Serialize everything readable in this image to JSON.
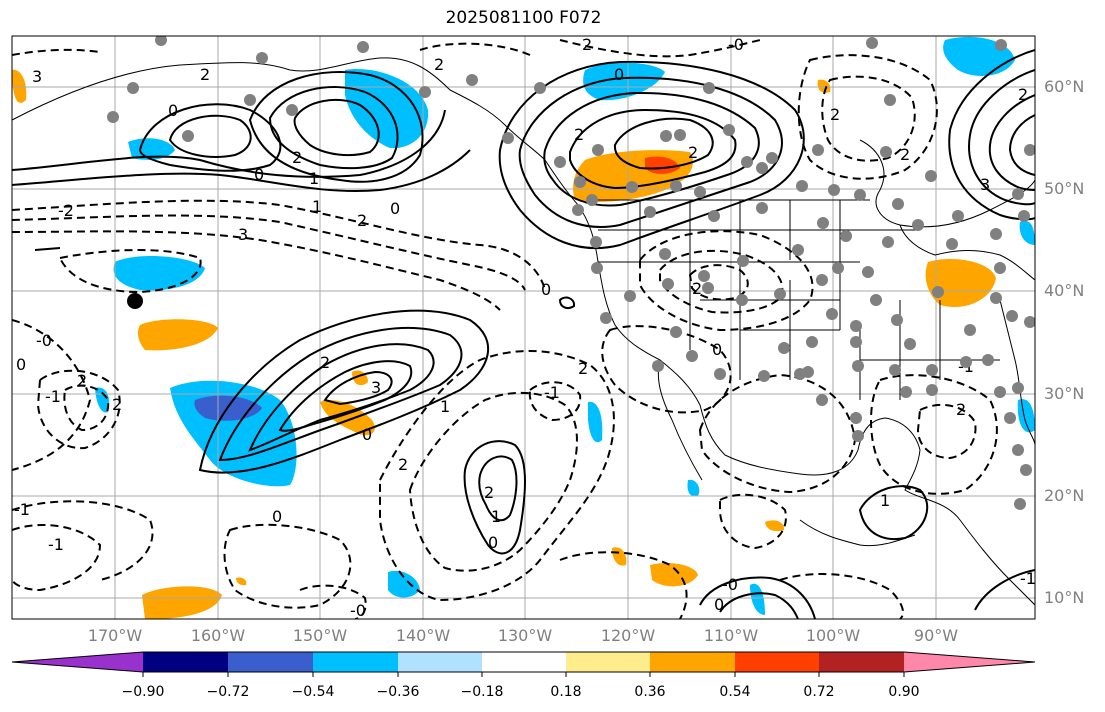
{
  "title": "2025081100 F072",
  "map": {
    "type": "forecast-anomaly-map",
    "region": "North-East Pacific and North America",
    "gridlines": true,
    "lat_labels": [
      "60°N",
      "50°N",
      "40°N",
      "30°N",
      "20°N",
      "10°N"
    ],
    "lon_labels": [
      "170°W",
      "160°W",
      "150°W",
      "140°W",
      "130°W",
      "120°W",
      "110°W",
      "100°W",
      "90°W"
    ],
    "contour_labels": [
      "3",
      "2",
      "0",
      "2",
      "1",
      "0",
      "2",
      "1",
      "2",
      "0",
      "3",
      "2",
      "0",
      "2",
      "2",
      "-0",
      "2",
      "0",
      "-0",
      "2",
      "-1",
      "2",
      "-2",
      "0",
      "0",
      "3",
      "2",
      "1",
      "2",
      "-1",
      "2",
      "0",
      "1",
      "2",
      "-0",
      "-1",
      "-1",
      "0",
      "-0",
      "0",
      "1",
      "2",
      "-1",
      "-1",
      "0",
      "2",
      "2",
      "2",
      "3"
    ],
    "colorbar": {
      "ticks": [
        "−0.90",
        "−0.72",
        "−0.54",
        "−0.36",
        "−0.18",
        "0.18",
        "0.36",
        "0.54",
        "0.72",
        "0.90"
      ],
      "colors": [
        "#9932cc",
        "#000080",
        "#3a5fcd",
        "#00bfff",
        "#b0e2ff",
        "#ffffff",
        "#ffec8b",
        "#ffa500",
        "#ff4000",
        "#b22222",
        "#ff88aa"
      ]
    },
    "marker_color": "#000000",
    "station_color": "#808080"
  }
}
